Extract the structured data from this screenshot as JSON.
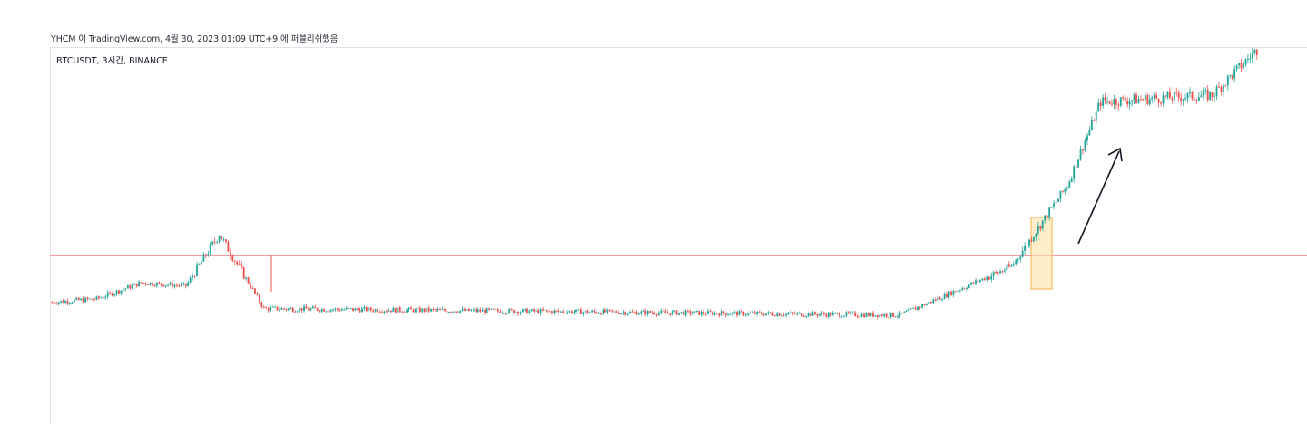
{
  "header": {
    "credit_text": "YHCM 이 TradingView.com, 4월 30, 2023 01:09 UTC+9 에 퍼블리쉬했음"
  },
  "chart": {
    "symbol_label": "BTCUSDT, 3시간, BINANCE"
  },
  "colors": {
    "up": "#26a69a",
    "down": "#ef5350",
    "level_line": "#f23645",
    "highlight_fill": "#ffe0a3",
    "highlight_stroke": "#f5b042",
    "arrow": "#131722",
    "grid": "#e0e3eb"
  },
  "chart_data": {
    "type": "candlestick",
    "symbol": "BTCUSDT",
    "interval": "3시간",
    "exchange": "BINANCE",
    "price_axis_labels_visible": false,
    "grid": false,
    "annotations": [
      {
        "type": "horizontal_line",
        "description": "resistance level at prior swing high",
        "color": "red"
      },
      {
        "type": "highlight_box",
        "description": "breakout candles above resistance",
        "color": "orange"
      },
      {
        "type": "arrow",
        "description": "upward move after breakout",
        "color": "black"
      }
    ],
    "segments": [
      {
        "from_bar": 0,
        "to_bar": 20,
        "relative_price": [
          0.22,
          0.23
        ],
        "trend": "flat"
      },
      {
        "from_bar": 20,
        "to_bar": 40,
        "relative_price": [
          0.23,
          0.28
        ],
        "trend": "up"
      },
      {
        "from_bar": 40,
        "to_bar": 60,
        "relative_price": [
          0.28,
          0.27
        ],
        "trend": "flat"
      },
      {
        "from_bar": 60,
        "to_bar": 75,
        "relative_price": [
          0.27,
          0.43
        ],
        "trend": "up"
      },
      {
        "from_bar": 75,
        "to_bar": 95,
        "relative_price": [
          0.43,
          0.2
        ],
        "trend": "down"
      },
      {
        "from_bar": 95,
        "to_bar": 380,
        "relative_price": [
          0.2,
          0.18
        ],
        "trend": "flat"
      },
      {
        "from_bar": 380,
        "to_bar": 430,
        "relative_price": [
          0.18,
          0.33
        ],
        "trend": "up"
      },
      {
        "from_bar": 430,
        "to_bar": 455,
        "relative_price": [
          0.33,
          0.58
        ],
        "trend": "up"
      },
      {
        "from_bar": 455,
        "to_bar": 470,
        "relative_price": [
          0.58,
          0.84
        ],
        "trend": "up"
      },
      {
        "from_bar": 470,
        "to_bar": 520,
        "relative_price": [
          0.84,
          0.86
        ],
        "trend": "flat"
      },
      {
        "from_bar": 520,
        "to_bar": 540,
        "relative_price": [
          0.86,
          1.0
        ],
        "trend": "up"
      }
    ]
  }
}
